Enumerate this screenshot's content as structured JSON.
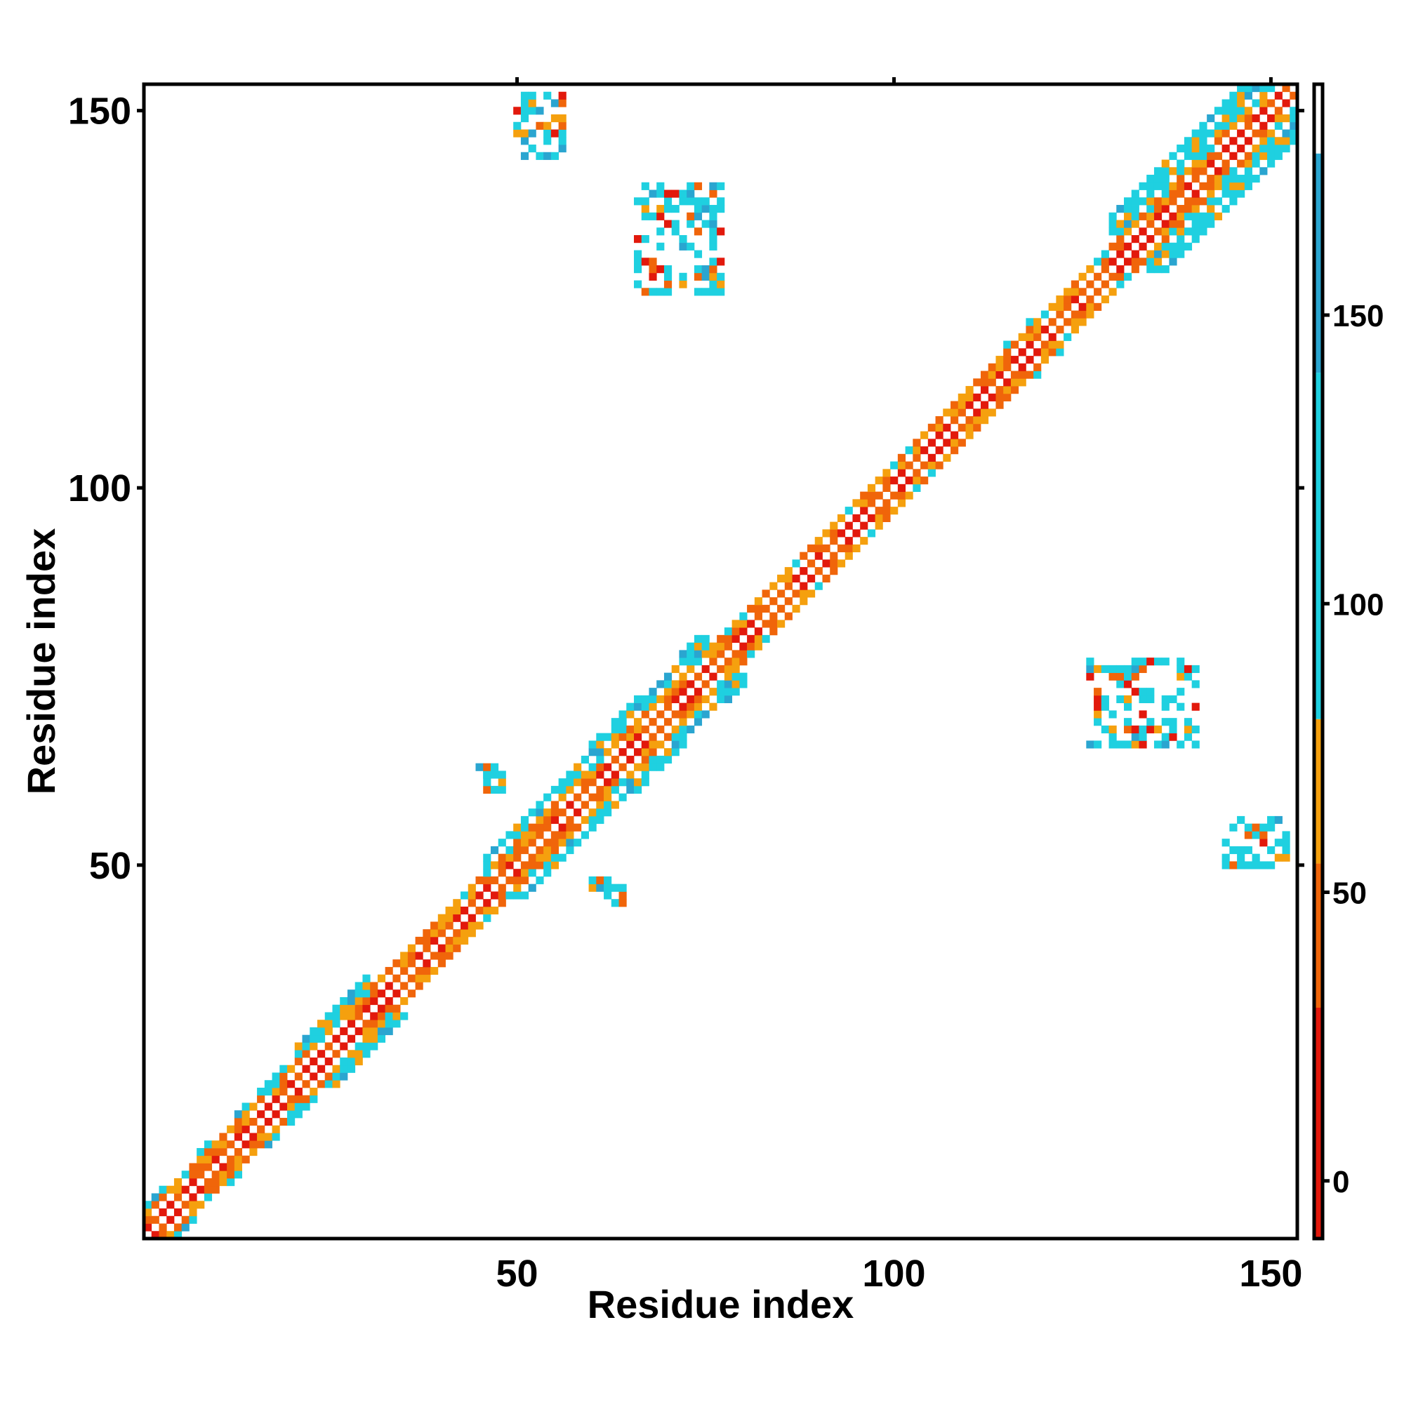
{
  "chart_data": {
    "type": "heatmap",
    "title": "",
    "xlabel": "Residue index",
    "ylabel": "Residue index",
    "xlim": [
      1,
      153
    ],
    "ylim": [
      1,
      153
    ],
    "x_ticks": [
      50,
      100,
      150
    ],
    "y_ticks": [
      50,
      100,
      150
    ],
    "colorbar": {
      "range": [
        -10,
        190
      ],
      "ticks": [
        0,
        50,
        100,
        150
      ],
      "bands": [
        {
          "from": -10,
          "to": 30,
          "color": "#e2190c"
        },
        {
          "from": 30,
          "to": 55,
          "color": "#f0650a"
        },
        {
          "from": 55,
          "to": 80,
          "color": "#f5a00e"
        },
        {
          "from": 80,
          "to": 140,
          "color": "#1fd0e0"
        },
        {
          "from": 140,
          "to": 178,
          "color": "#2aa5d0"
        },
        {
          "from": 178,
          "to": 190,
          "color": "#ffffff"
        }
      ]
    },
    "value_colors": {
      "red": "#e2190c",
      "orange": "#f0650a",
      "amber": "#f5a00e",
      "cyan": "#1fd0e0",
      "steel": "#2aa5d0"
    },
    "diagonal_band": {
      "description_free": true,
      "segments": [
        {
          "from": 1,
          "to": 20,
          "half_width": 4
        },
        {
          "from": 20,
          "to": 30,
          "half_width": 5
        },
        {
          "from": 30,
          "to": 45,
          "half_width": 3
        },
        {
          "from": 45,
          "to": 58,
          "half_width": 5
        },
        {
          "from": 58,
          "to": 75,
          "half_width": 6
        },
        {
          "from": 75,
          "to": 112,
          "half_width": 3
        },
        {
          "from": 112,
          "to": 118,
          "half_width": 4
        },
        {
          "from": 118,
          "to": 128,
          "half_width": 3
        },
        {
          "from": 128,
          "to": 153,
          "half_width": 7
        }
      ]
    },
    "off_diagonal_clusters": [
      {
        "x": [
          50,
          56
        ],
        "y": [
          144,
          152
        ]
      },
      {
        "x": [
          66,
          77
        ],
        "y": [
          126,
          140
        ]
      },
      {
        "x": [
          126,
          140
        ],
        "y": [
          66,
          77
        ]
      },
      {
        "x": [
          144,
          152
        ],
        "y": [
          50,
          56
        ]
      },
      {
        "x": [
          46,
          48
        ],
        "y": [
          60,
          62
        ]
      },
      {
        "x": [
          60,
          62
        ],
        "y": [
          46,
          48
        ]
      },
      {
        "x": [
          62,
          64
        ],
        "y": [
          45,
          47
        ]
      },
      {
        "x": [
          45,
          47
        ],
        "y": [
          62,
          64
        ]
      }
    ]
  }
}
